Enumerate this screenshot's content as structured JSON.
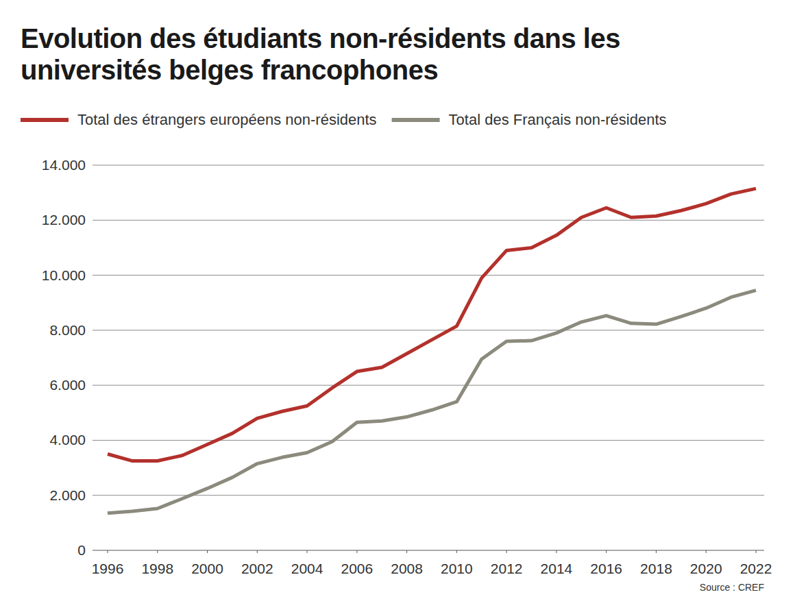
{
  "chart_data": {
    "type": "line",
    "title": "Evolution des étudiants non-résidents dans les universités belges francophones",
    "source": "Source : CREF",
    "x": [
      1996,
      1997,
      1998,
      1999,
      2000,
      2001,
      2002,
      2003,
      2004,
      2005,
      2006,
      2007,
      2008,
      2009,
      2010,
      2011,
      2012,
      2013,
      2014,
      2015,
      2016,
      2017,
      2018,
      2019,
      2020,
      2021,
      2022
    ],
    "series": [
      {
        "name": "Total des étrangers européens non-résidents",
        "color": "#b3312c",
        "values": [
          3500,
          3250,
          3250,
          3450,
          3850,
          4250,
          4800,
          5050,
          5250,
          5900,
          6500,
          6650,
          7150,
          7650,
          8150,
          9900,
          10900,
          11000,
          11450,
          12100,
          12450,
          12100,
          12150,
          12350,
          12600,
          12950,
          13150
        ]
      },
      {
        "name": "Total des Français non-résidents",
        "color": "#8b8a7d",
        "values": [
          1350,
          1420,
          1520,
          1880,
          2250,
          2650,
          3150,
          3380,
          3550,
          3950,
          4650,
          4700,
          4850,
          5100,
          5400,
          6950,
          7600,
          7620,
          7900,
          8300,
          8530,
          8250,
          8220,
          8500,
          8800,
          9200,
          9450
        ]
      }
    ],
    "xlim": [
      1996,
      2022
    ],
    "xticks": [
      1996,
      1998,
      2000,
      2002,
      2004,
      2006,
      2008,
      2010,
      2012,
      2014,
      2016,
      2018,
      2020,
      2022
    ],
    "ylim": [
      0,
      14000
    ],
    "yticks": [
      0,
      {
        "value": 2000,
        "label": "2.000"
      },
      {
        "value": 4000,
        "label": "4.000"
      },
      {
        "value": 6000,
        "label": "6.000"
      },
      {
        "value": 8000,
        "label": "8.000"
      },
      {
        "value": 10000,
        "label": "10.000"
      },
      {
        "value": 12000,
        "label": "12.000"
      },
      {
        "value": 14000,
        "label": "14.000"
      }
    ],
    "grid": true,
    "legend": "top-left",
    "line_style": "solid"
  }
}
